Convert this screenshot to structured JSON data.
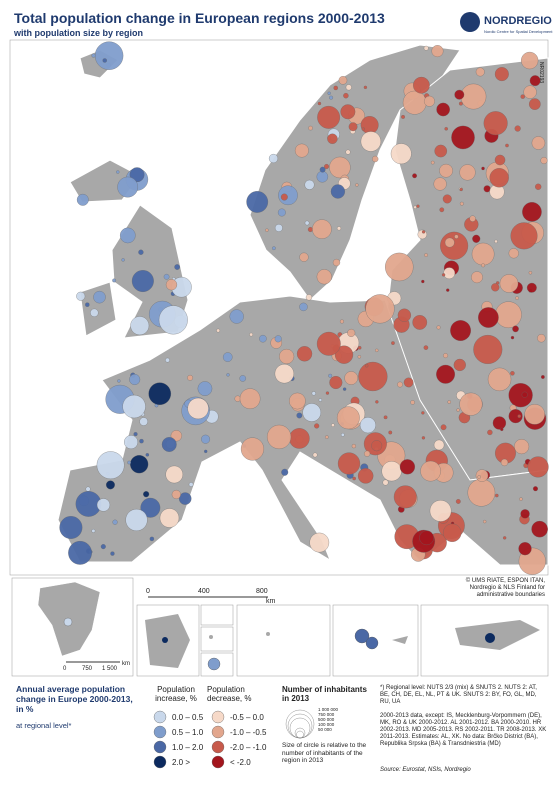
{
  "header": {
    "title": "Total population change in European regions 2000-2013",
    "subtitle": "with population size by region",
    "logo": "NORDREGIO",
    "logo_sub": "Nordic Centre for Spatial Development",
    "map_id": "NR02193"
  },
  "map": {
    "land_color": "#a8a8a8",
    "border_color": "#ffffff"
  },
  "scale_bar": {
    "labels": [
      "0",
      "400",
      "800",
      "km"
    ]
  },
  "inset_scale": {
    "labels": [
      "0",
      "750",
      "1 500",
      "km"
    ]
  },
  "credits": "© UMS RIATE, ESPON ITAN, Nordregio & NLS Finland for administrative boundaries",
  "legend": {
    "title": "Annual average population change in Europe 2000-2013, in %",
    "sub": "at regional level*",
    "increase": {
      "heading": "Population increase, %",
      "items": [
        {
          "label": "0.0 – 0.5",
          "color": "#c9d8eb"
        },
        {
          "label": "0.5 – 1.0",
          "color": "#7f9dcc"
        },
        {
          "label": "1.0 – 2.0",
          "color": "#4a68a5"
        },
        {
          "label": "2.0 >",
          "color": "#0c2a5f"
        }
      ]
    },
    "decrease": {
      "heading": "Population decrease, %",
      "items": [
        {
          "label": "-0.5 – 0.0",
          "color": "#f6d9c8"
        },
        {
          "label": "-1.0 – -0.5",
          "color": "#e2a68d"
        },
        {
          "label": "-2.0 – -1.0",
          "color": "#c75a4b"
        },
        {
          "label": "< -2.0",
          "color": "#a3151d"
        }
      ]
    },
    "size": {
      "heading": "Number of inhabitants in 2013",
      "values": [
        "1 000 000",
        "750 000",
        "500 000",
        "100 000",
        "50 000"
      ],
      "note": "Size of circle is relative to the number of inhabitants of the region in 2013"
    }
  },
  "notes": [
    "*) Regional level: NUTS 2/3 (mix) & SNUTS 2. NUTS 2: AT, BE, CH, DE, EL, NL, PT & UK. SNUTS 2: BY, FO, GL, MD, RU, UA",
    "2000-2013 data, except: IS, Mecklenburg-Vorpommern (DE), MK, RO & UK 2000-2012. AL 2001-2012. BA 2000-2010. HR 2002-2013. MD 2005-2013. RS 2002-2011. TR 2008-2013. XK 2011-2013. Estimates: AL, XK. No data: Brčko District (BA), Republika Srpska (BA) & Transdniestria (MD)"
  ],
  "source": "Source: Eurostat, NSIs, Nordregio"
}
